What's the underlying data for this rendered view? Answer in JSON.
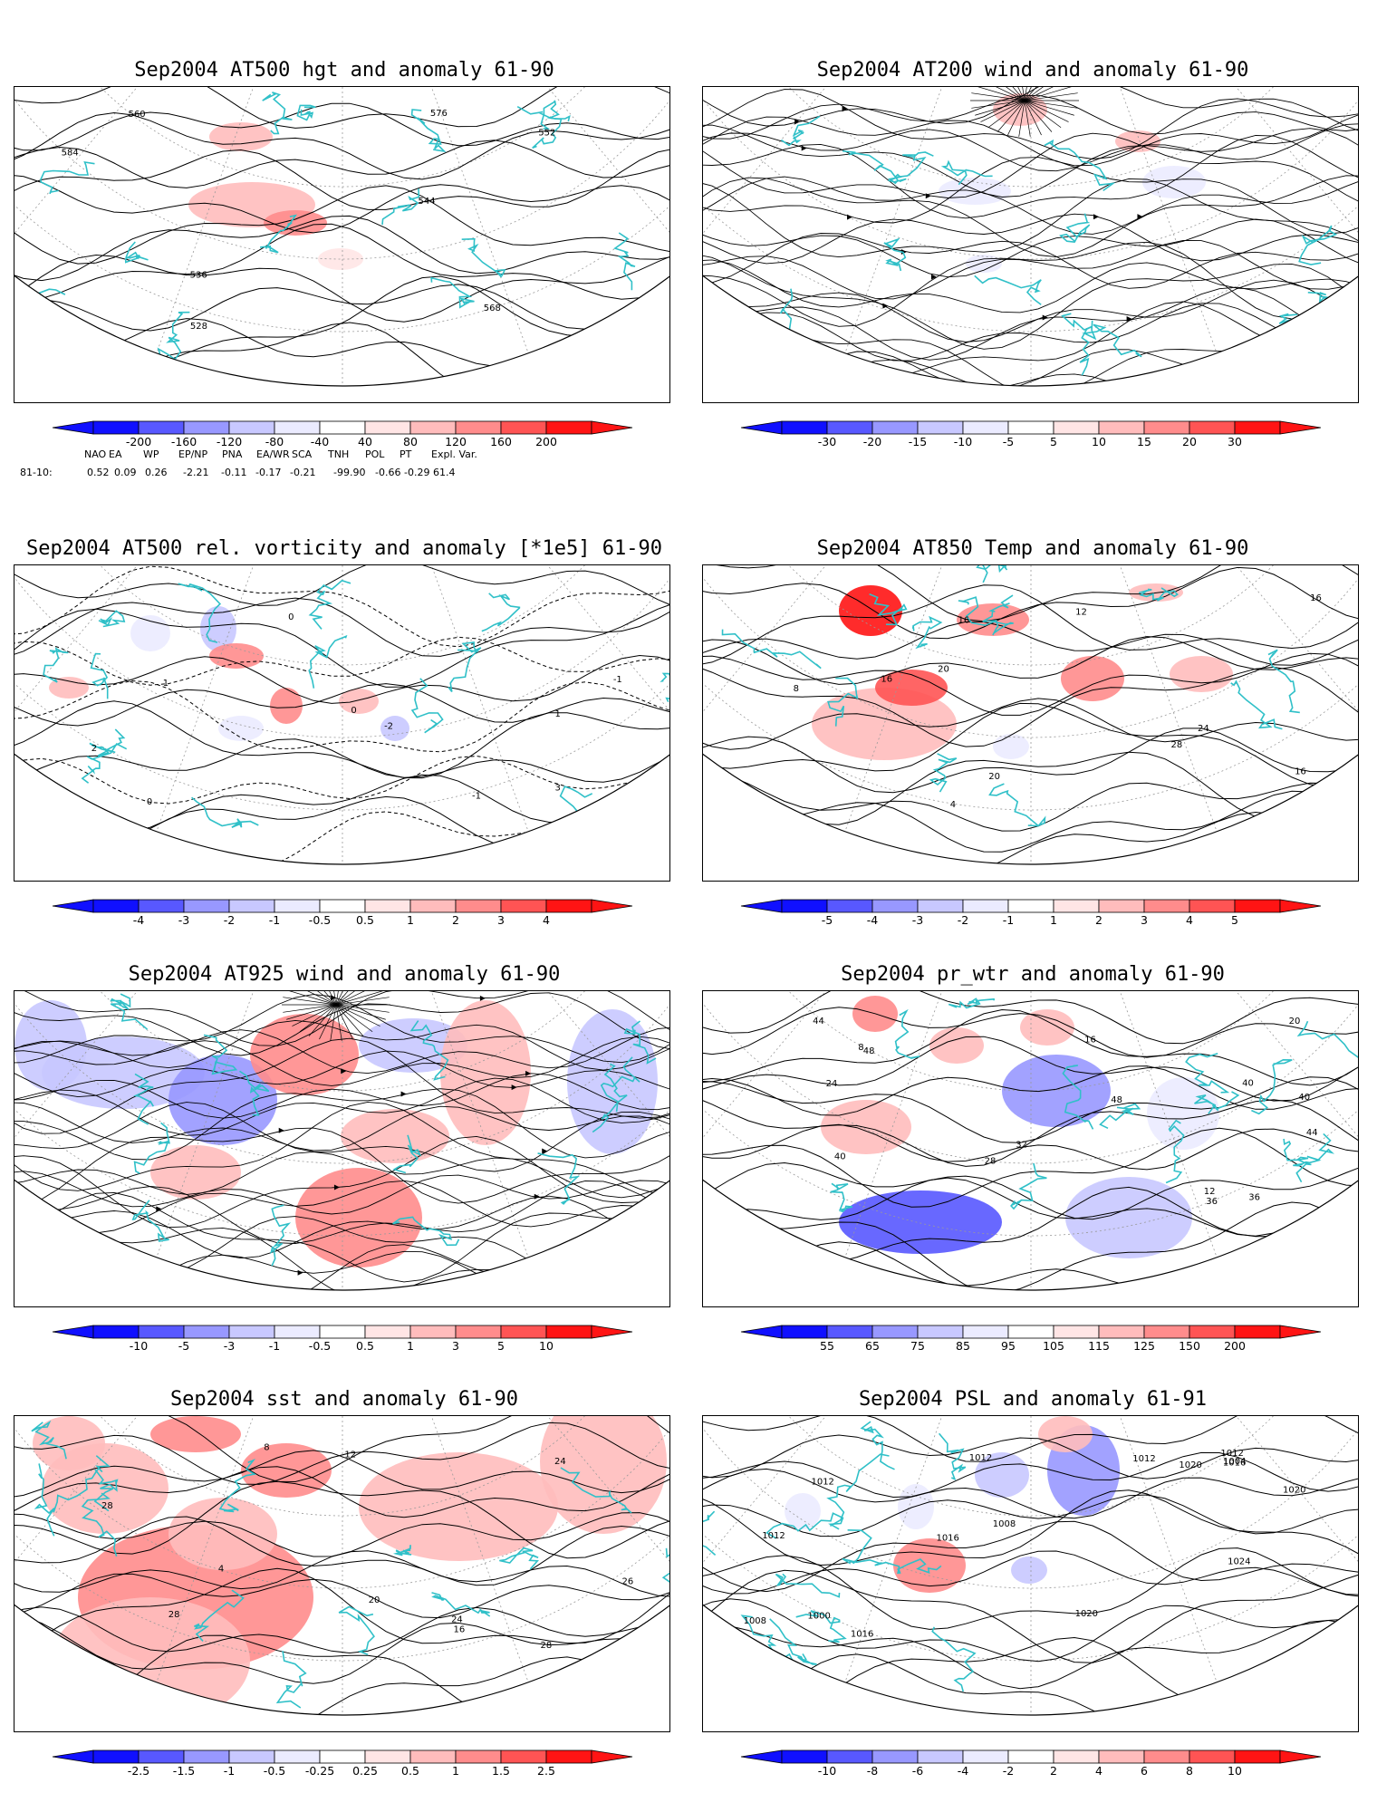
{
  "colors": {
    "coast": "#30c0c8",
    "contour": "#000000",
    "graticule": "#9a9a9a",
    "neg": [
      "#1010ff",
      "#5858ff",
      "#9898ff",
      "#c8c8ff",
      "#ebebff"
    ],
    "pos": [
      "#ffe5e5",
      "#ffbcbc",
      "#ff8c8c",
      "#ff5454",
      "#ff1414"
    ]
  },
  "panels": [
    {
      "id": "z500",
      "title": "Sep2004 AT500 hgt and anomaly 61-90",
      "colorbar": [
        "-200",
        "-160",
        "-120",
        "-80",
        "-40",
        "40",
        "80",
        "120",
        "160",
        "200"
      ],
      "contour_labels": [
        "528",
        "536",
        "544",
        "552",
        "560",
        "568",
        "576",
        "584"
      ]
    },
    {
      "id": "u200",
      "title": "Sep2004 AT200 wind and anomaly 61-90",
      "colorbar": [
        "-30",
        "-20",
        "-15",
        "-10",
        "-5",
        "5",
        "10",
        "15",
        "20",
        "30"
      ],
      "contour_labels": []
    },
    {
      "id": "vort500",
      "title": "Sep2004 AT500 rel. vorticity and anomaly [*1e5] 61-90",
      "colorbar": [
        "-4",
        "-3",
        "-2",
        "-1",
        "-0.5",
        "0.5",
        "1",
        "2",
        "3",
        "4"
      ],
      "contour_labels": [
        "0",
        "-1",
        "1",
        "2",
        "-2",
        "3",
        "0",
        "-1",
        "1",
        "0"
      ]
    },
    {
      "id": "t850",
      "title": "Sep2004 AT850 Temp and anomaly 61-90",
      "colorbar": [
        "-5",
        "-4",
        "-3",
        "-2",
        "-1",
        "1",
        "2",
        "3",
        "4",
        "5"
      ],
      "contour_labels": [
        "16",
        "4",
        "24",
        "8",
        "12",
        "28",
        "16",
        "20",
        "24",
        "20",
        "16",
        "16"
      ]
    },
    {
      "id": "u925",
      "title": "Sep2004 AT925 wind and anomaly 61-90",
      "colorbar": [
        "-10",
        "-5",
        "-3",
        "-1",
        "-0.5",
        "0.5",
        "1",
        "3",
        "5",
        "10"
      ],
      "contour_labels": []
    },
    {
      "id": "pwtr",
      "title": "Sep2004 pr_wtr and anomaly 61-90",
      "colorbar": [
        "55",
        "65",
        "75",
        "85",
        "95",
        "105",
        "115",
        "125",
        "150",
        "200"
      ],
      "contour_labels": [
        "36",
        "40",
        "44",
        "24",
        "12",
        "8",
        "16",
        "20",
        "28",
        "32",
        "48",
        "40",
        "44",
        "48",
        "40",
        "36"
      ]
    },
    {
      "id": "sst",
      "title": "Sep2004 sst and anomaly 61-90",
      "colorbar": [
        "-2.5",
        "-1.5",
        "-1",
        "-0.5",
        "-0.25",
        "0.25",
        "0.5",
        "1",
        "1.5",
        "2.5"
      ],
      "contour_labels": [
        "24",
        "28",
        "20",
        "16",
        "12",
        "8",
        "4",
        "24",
        "28",
        "26",
        "28"
      ]
    },
    {
      "id": "psl",
      "title": "Sep2004 PSL and anomaly 61-91",
      "colorbar": [
        "-10",
        "-8",
        "-6",
        "-4",
        "-2",
        "2",
        "4",
        "6",
        "8",
        "10"
      ],
      "contour_labels": [
        "1012",
        "1016",
        "1020",
        "1012",
        "1008",
        "1000",
        "1004",
        "1016",
        "1020",
        "1024",
        "1020",
        "1016",
        "1012",
        "1008",
        "1012",
        "1012"
      ]
    }
  ],
  "indices": {
    "names": [
      "NAO",
      "EA",
      "WP",
      "EP/NP",
      "PNA",
      "EA/WR",
      "SCA",
      "TNH",
      "POL",
      "PT",
      "Expl. Var."
    ],
    "row_label": "81-10:",
    "values": [
      "0.52",
      "0.09",
      "0.26",
      "-2.21",
      "-0.11",
      "-0.17",
      "-0.21",
      "-99.90",
      "-0.66",
      "-0.29",
      "61.4"
    ]
  }
}
